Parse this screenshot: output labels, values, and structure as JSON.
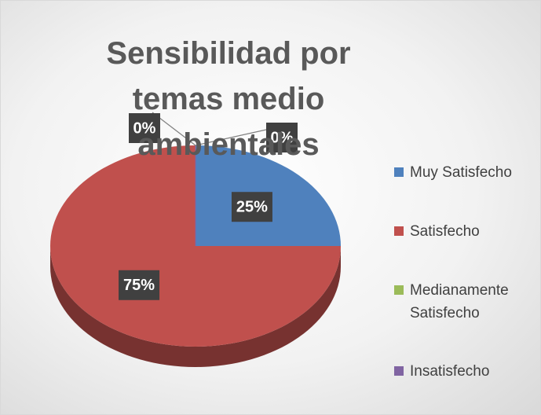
{
  "chart_data": {
    "type": "pie",
    "title": "Sensibilidad por temas medio ambientales",
    "categories": [
      "Muy Satisfecho",
      "Satisfecho",
      "Medianamente Satisfecho",
      "Insatisfecho"
    ],
    "values": [
      25,
      75,
      0,
      0
    ],
    "value_labels": [
      "25%",
      "75%",
      "0%",
      "0%"
    ],
    "colors": [
      "#4f81bd",
      "#c0504d",
      "#9bbb59",
      "#8064a2"
    ],
    "legend": "right"
  }
}
